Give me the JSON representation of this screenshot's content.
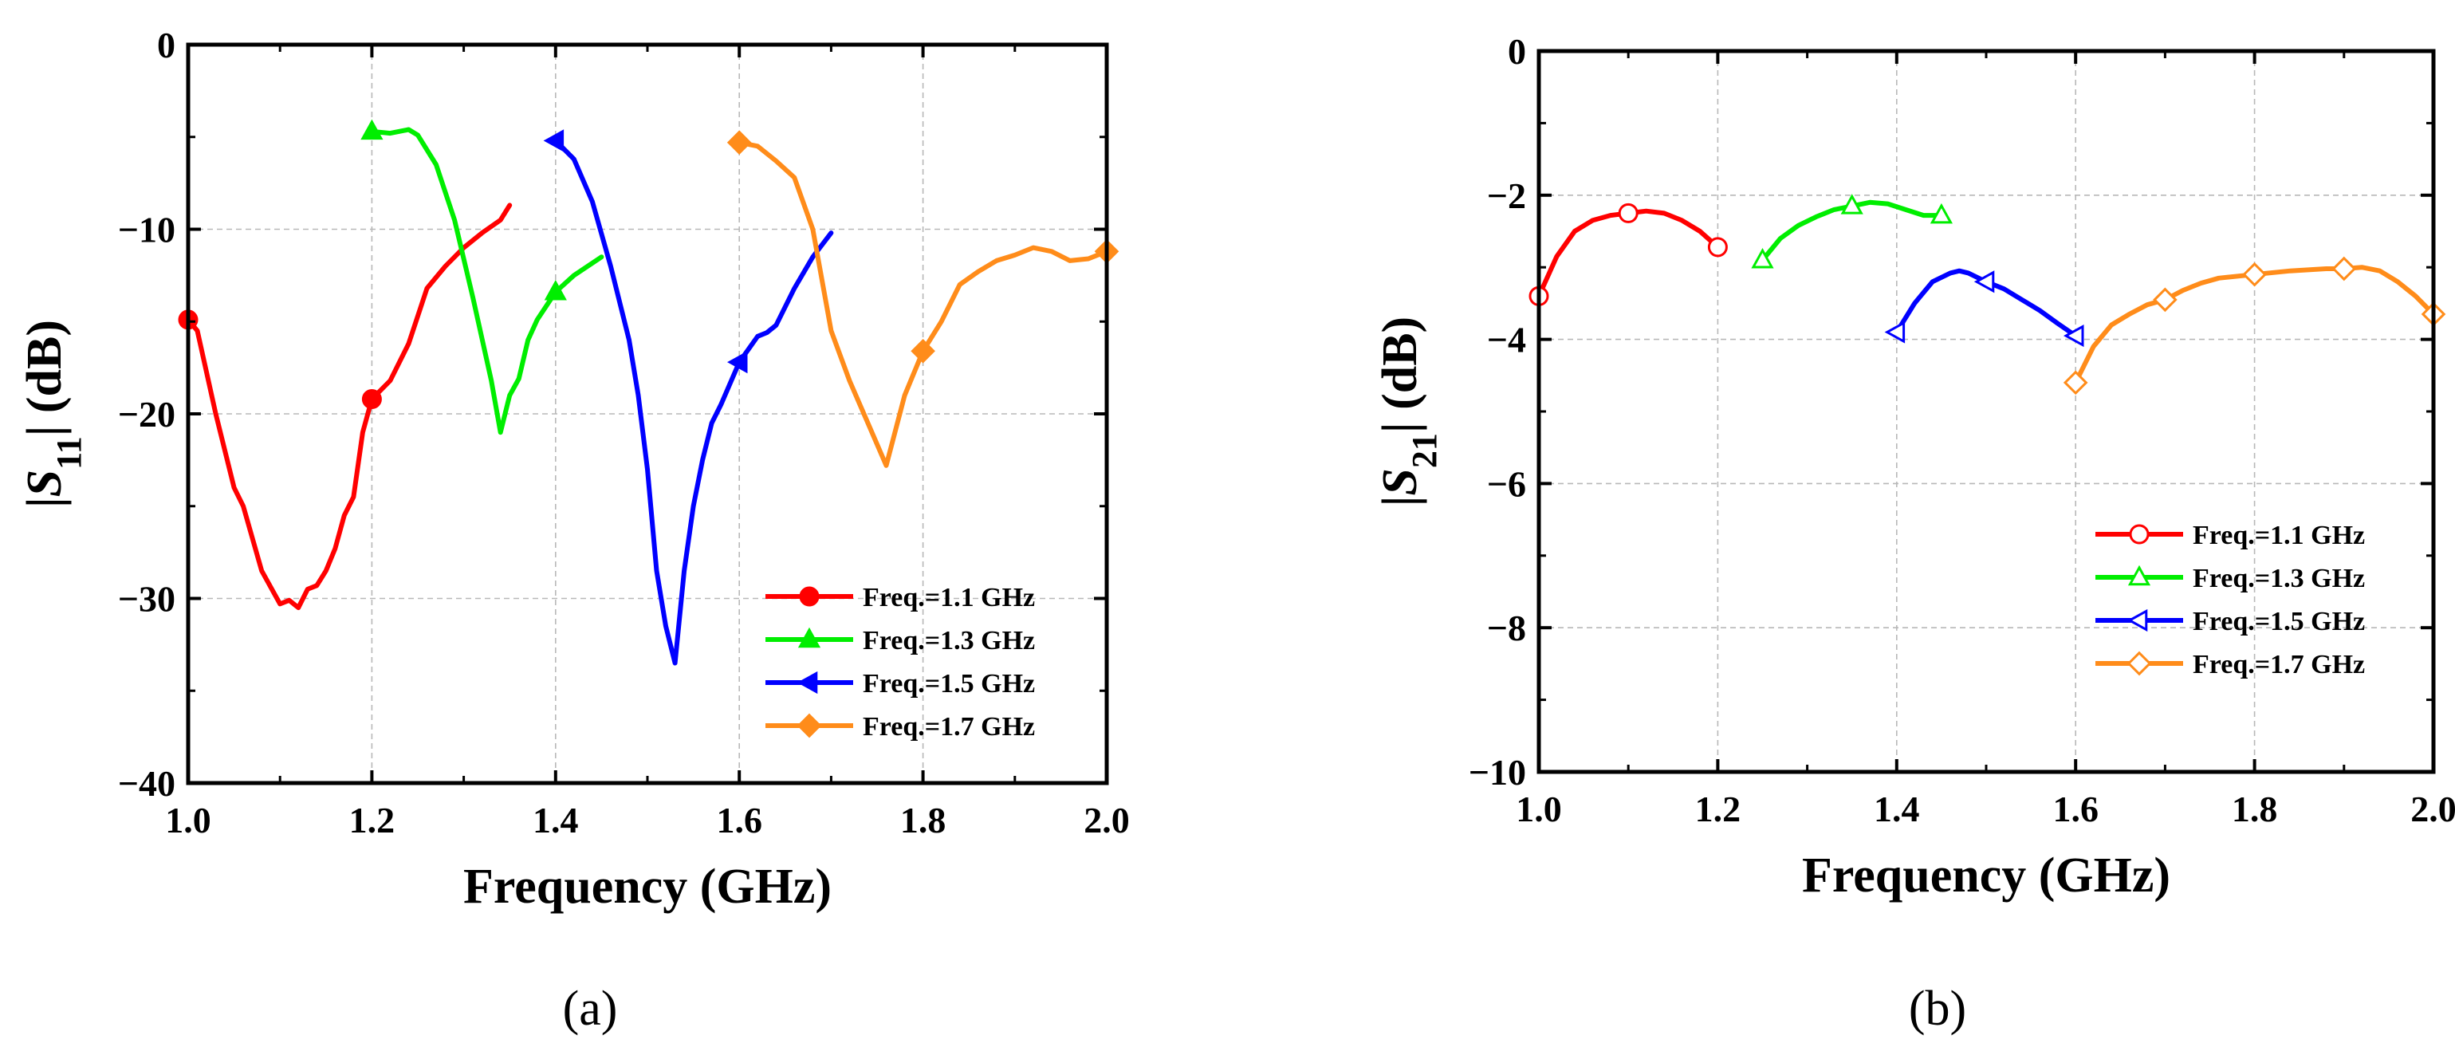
{
  "chart_data": [
    {
      "type": "line",
      "panel_label": "(a)",
      "xlabel": "Frequency (GHz)",
      "ylabel": {
        "prefix": "|",
        "symbol": "S",
        "subscript": "11",
        "suffix": "| (dB)"
      },
      "xlim": [
        1.0,
        2.0
      ],
      "ylim": [
        -40,
        0
      ],
      "xticks": [
        "1.0",
        "1.2",
        "1.4",
        "1.6",
        "1.8",
        "2.0"
      ],
      "yticks": [
        "0",
        "−10",
        "−20",
        "−30",
        "−40"
      ],
      "grid": true,
      "legend_position": "bottom-right",
      "series": [
        {
          "name": "Freq.=1.1 GHz",
          "color": "#ff0000",
          "marker": "circle",
          "filled": true,
          "x": [
            1.0,
            1.01,
            1.03,
            1.05,
            1.06,
            1.08,
            1.1,
            1.11,
            1.12,
            1.13,
            1.14,
            1.15,
            1.16,
            1.17,
            1.18,
            1.19,
            1.2,
            1.22,
            1.24,
            1.26,
            1.28,
            1.3,
            1.32,
            1.34,
            1.35
          ],
          "y": [
            -14.9,
            -15.5,
            -20,
            -24,
            -25,
            -28.5,
            -30.3,
            -30.1,
            -30.5,
            -29.5,
            -29.3,
            -28.5,
            -27.3,
            -25.5,
            -24.5,
            -21,
            -19.2,
            -18.2,
            -16.2,
            -13.2,
            -12,
            -11,
            -10.2,
            -9.5,
            -8.7
          ],
          "marker_x": [
            1.0,
            1.2
          ]
        },
        {
          "name": "Freq.=1.3 GHz",
          "color": "#00ee00",
          "marker": "triangle",
          "filled": true,
          "x": [
            1.2,
            1.22,
            1.24,
            1.25,
            1.27,
            1.29,
            1.31,
            1.33,
            1.34,
            1.35,
            1.36,
            1.37,
            1.38,
            1.4,
            1.42,
            1.45
          ],
          "y": [
            -4.7,
            -4.8,
            -4.6,
            -4.9,
            -6.5,
            -9.5,
            -13.7,
            -18.2,
            -21.0,
            -19.0,
            -18.1,
            -16.0,
            -14.9,
            -13.4,
            -12.5,
            -11.5
          ],
          "marker_x": [
            1.2,
            1.4
          ]
        },
        {
          "name": "Freq.=1.5 GHz",
          "color": "#0000ff",
          "marker": "triangle-left",
          "filled": true,
          "x": [
            1.4,
            1.42,
            1.44,
            1.46,
            1.48,
            1.49,
            1.5,
            1.51,
            1.52,
            1.53,
            1.54,
            1.55,
            1.56,
            1.57,
            1.58,
            1.6,
            1.61,
            1.62,
            1.63,
            1.64,
            1.66,
            1.68,
            1.7
          ],
          "y": [
            -5.2,
            -6.2,
            -8.5,
            -12,
            -16,
            -19,
            -23,
            -28.5,
            -31.5,
            -33.5,
            -28.5,
            -25,
            -22.5,
            -20.5,
            -19.5,
            -17.2,
            -16.5,
            -15.8,
            -15.6,
            -15.2,
            -13.2,
            -11.5,
            -10.2
          ],
          "marker_x": [
            1.4,
            1.6
          ]
        },
        {
          "name": "Freq.=1.7 GHz",
          "color": "#ff8c1a",
          "marker": "diamond",
          "filled": true,
          "x": [
            1.6,
            1.62,
            1.64,
            1.66,
            1.68,
            1.7,
            1.72,
            1.74,
            1.76,
            1.78,
            1.8,
            1.82,
            1.84,
            1.86,
            1.88,
            1.9,
            1.92,
            1.94,
            1.96,
            1.98,
            2.0
          ],
          "y": [
            -5.3,
            -5.5,
            -6.3,
            -7.2,
            -10.0,
            -15.5,
            -18.2,
            -20.5,
            -22.8,
            -19.0,
            -16.6,
            -15.0,
            -13.0,
            -12.3,
            -11.7,
            -11.4,
            -11.0,
            -11.2,
            -11.7,
            -11.6,
            -11.2
          ],
          "marker_x": [
            1.6,
            1.8,
            2.0
          ]
        }
      ]
    },
    {
      "type": "line",
      "panel_label": "(b)",
      "xlabel": "Frequency (GHz)",
      "ylabel": {
        "prefix": "|",
        "symbol": "S",
        "subscript": "21",
        "suffix": "| (dB)"
      },
      "xlim": [
        1.0,
        2.0
      ],
      "ylim": [
        -10,
        0
      ],
      "xticks": [
        "1.0",
        "1.2",
        "1.4",
        "1.6",
        "1.8",
        "2.0"
      ],
      "yticks": [
        "0",
        "−2",
        "−4",
        "−6",
        "−8",
        "−10"
      ],
      "grid": true,
      "legend_position": "right",
      "series": [
        {
          "name": "Freq.=1.1 GHz",
          "color": "#ff0000",
          "marker": "circle",
          "filled": false,
          "x": [
            1.0,
            1.02,
            1.04,
            1.06,
            1.08,
            1.1,
            1.12,
            1.14,
            1.16,
            1.18,
            1.2
          ],
          "y": [
            -3.4,
            -2.85,
            -2.5,
            -2.35,
            -2.28,
            -2.25,
            -2.22,
            -2.25,
            -2.35,
            -2.5,
            -2.72
          ],
          "marker_x": [
            1.0,
            1.1,
            1.2
          ]
        },
        {
          "name": "Freq.=1.3 GHz",
          "color": "#00ee00",
          "marker": "triangle",
          "filled": false,
          "x": [
            1.25,
            1.27,
            1.29,
            1.31,
            1.33,
            1.35,
            1.37,
            1.39,
            1.41,
            1.43,
            1.45
          ],
          "y": [
            -2.9,
            -2.6,
            -2.42,
            -2.3,
            -2.2,
            -2.15,
            -2.1,
            -2.12,
            -2.2,
            -2.28,
            -2.28
          ],
          "marker_x": [
            1.25,
            1.35,
            1.45
          ]
        },
        {
          "name": "Freq.=1.5 GHz",
          "color": "#0000ff",
          "marker": "triangle-left",
          "filled": false,
          "x": [
            1.4,
            1.42,
            1.44,
            1.46,
            1.47,
            1.48,
            1.5,
            1.52,
            1.54,
            1.56,
            1.58,
            1.6
          ],
          "y": [
            -3.9,
            -3.5,
            -3.2,
            -3.08,
            -3.05,
            -3.08,
            -3.2,
            -3.3,
            -3.45,
            -3.6,
            -3.78,
            -3.95
          ],
          "marker_x": [
            1.4,
            1.5,
            1.6
          ]
        },
        {
          "name": "Freq.=1.7 GHz",
          "color": "#ff8c1a",
          "marker": "diamond",
          "filled": false,
          "x": [
            1.6,
            1.62,
            1.64,
            1.66,
            1.68,
            1.7,
            1.72,
            1.74,
            1.76,
            1.8,
            1.84,
            1.88,
            1.9,
            1.92,
            1.94,
            1.96,
            1.98,
            2.0
          ],
          "y": [
            -4.6,
            -4.1,
            -3.8,
            -3.65,
            -3.52,
            -3.45,
            -3.32,
            -3.22,
            -3.15,
            -3.1,
            -3.05,
            -3.02,
            -3.02,
            -3.0,
            -3.05,
            -3.2,
            -3.4,
            -3.65
          ],
          "marker_x": [
            1.6,
            1.7,
            1.8,
            1.9,
            2.0
          ]
        }
      ]
    }
  ]
}
